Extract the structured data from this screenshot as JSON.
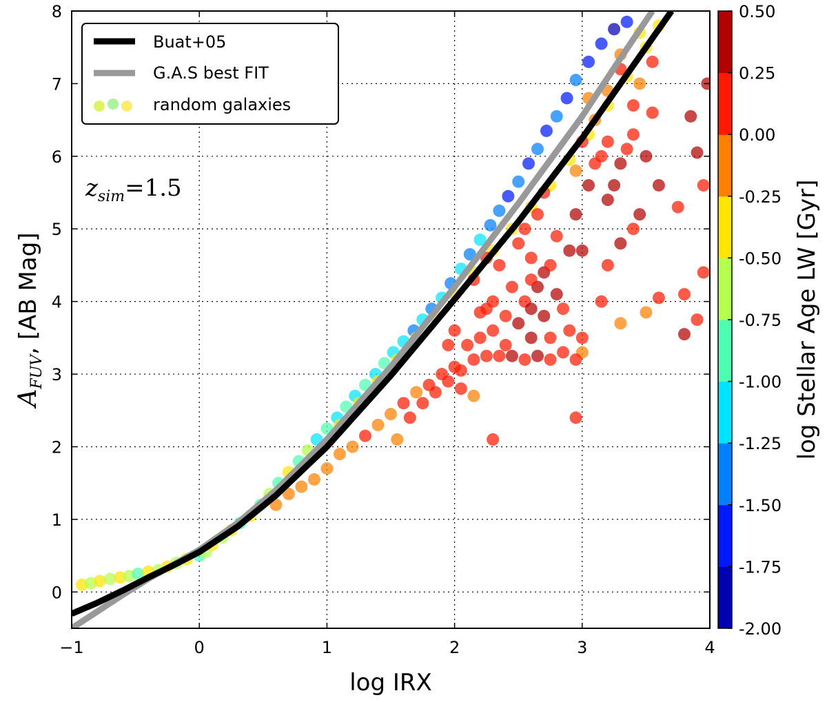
{
  "chart_data": {
    "type": "scatter",
    "title": "",
    "xlabel": "log IRX",
    "ylabel_math": {
      "main": "A",
      "sub": "FUV",
      "rest": ", [AB Mag]"
    },
    "xlim": [
      -1,
      4
    ],
    "ylim": [
      -0.5,
      8
    ],
    "xticks": [
      -1,
      0,
      1,
      2,
      3,
      4
    ],
    "xtick_labels": [
      "−1",
      "0",
      "1",
      "2",
      "3",
      "4"
    ],
    "yticks": [
      0,
      1,
      2,
      3,
      4,
      5,
      6,
      7,
      8
    ],
    "ytick_labels": [
      "0",
      "1",
      "2",
      "3",
      "4",
      "5",
      "6",
      "7",
      "8"
    ],
    "grid": true,
    "annotation": {
      "main": "z",
      "sub": "sim",
      "rest": "=1.5"
    },
    "legend": {
      "placement": "top-left",
      "entries": [
        {
          "label": "Buat+05",
          "kind": "line",
          "color": "#000000"
        },
        {
          "label": "G.A.S best FIT",
          "kind": "line",
          "color": "#999999"
        },
        {
          "label": "random galaxies",
          "kind": "markers",
          "colors": [
            "#d2f02a",
            "#8ef07a",
            "#ffe43a"
          ]
        }
      ]
    },
    "colorbar": {
      "label": "log Stellar Age LW [Gyr]",
      "min": -2.0,
      "max": 0.5,
      "ticks": [
        0.5,
        0.25,
        0.0,
        -0.25,
        -0.5,
        -0.75,
        -1.0,
        -1.25,
        -1.5,
        -1.75,
        -2.0
      ],
      "tick_labels": [
        "0.50",
        "0.25",
        "0.00",
        "-0.25",
        "-0.50",
        "-0.75",
        "-1.00",
        "-1.25",
        "-1.50",
        "-1.75",
        "-2.00"
      ],
      "colormap": "jet",
      "bins": 10
    },
    "series": [
      {
        "name": "Buat+05",
        "kind": "line",
        "color": "#000000",
        "x": [
          -1.0,
          -0.8,
          -0.6,
          -0.4,
          -0.2,
          0.0,
          0.3,
          0.6,
          1.0,
          1.5,
          2.0,
          2.5,
          3.0,
          3.3,
          3.7
        ],
        "y": [
          -0.3,
          -0.15,
          0.02,
          0.2,
          0.37,
          0.55,
          0.9,
          1.33,
          2.0,
          2.98,
          4.03,
          5.1,
          6.25,
          7.0,
          8.0
        ]
      },
      {
        "name": "G.A.S best FIT",
        "kind": "line",
        "color": "#999999",
        "x": [
          -1.0,
          -0.8,
          -0.6,
          -0.4,
          -0.2,
          0.0,
          0.3,
          0.6,
          1.0,
          1.5,
          2.0,
          2.5,
          3.0,
          3.3,
          3.55
        ],
        "y": [
          -0.5,
          -0.27,
          -0.04,
          0.18,
          0.38,
          0.58,
          0.95,
          1.4,
          2.1,
          3.1,
          4.2,
          5.35,
          6.55,
          7.35,
          8.0
        ]
      },
      {
        "name": "galaxies",
        "kind": "scatter",
        "points": [
          [
            -0.92,
            0.1,
            -0.4
          ],
          [
            -0.85,
            0.12,
            -0.6
          ],
          [
            -0.78,
            0.15,
            -0.45
          ],
          [
            -0.7,
            0.18,
            -0.7
          ],
          [
            -0.62,
            0.2,
            -0.35
          ],
          [
            -0.55,
            0.22,
            -0.55
          ],
          [
            -0.48,
            0.25,
            -0.8
          ],
          [
            -0.4,
            0.28,
            -0.4
          ],
          [
            -0.32,
            0.3,
            -0.65
          ],
          [
            -0.25,
            0.35,
            -0.5
          ],
          [
            -0.18,
            0.4,
            -0.75
          ],
          [
            -0.1,
            0.45,
            -0.45
          ],
          [
            0.0,
            0.5,
            -0.9
          ],
          [
            0.05,
            0.55,
            -0.6
          ],
          [
            0.1,
            0.65,
            -0.3
          ],
          [
            0.18,
            0.75,
            -0.7
          ],
          [
            0.25,
            0.85,
            -0.5
          ],
          [
            0.32,
            0.95,
            -0.85
          ],
          [
            0.4,
            1.05,
            -0.4
          ],
          [
            0.48,
            1.2,
            -0.8
          ],
          [
            0.55,
            1.35,
            -0.6
          ],
          [
            0.62,
            1.5,
            -0.9
          ],
          [
            0.7,
            1.65,
            -0.5
          ],
          [
            0.78,
            1.8,
            -0.95
          ],
          [
            0.85,
            1.95,
            -0.7
          ],
          [
            0.92,
            2.1,
            -1.05
          ],
          [
            1.0,
            2.25,
            -0.8
          ],
          [
            1.08,
            2.4,
            -1.1
          ],
          [
            1.15,
            2.55,
            -0.9
          ],
          [
            1.22,
            2.7,
            -1.15
          ],
          [
            1.3,
            2.85,
            -0.95
          ],
          [
            1.38,
            3.0,
            -1.2
          ],
          [
            1.45,
            3.15,
            -1.0
          ],
          [
            1.52,
            3.3,
            -1.25
          ],
          [
            1.6,
            3.45,
            -1.1
          ],
          [
            1.68,
            3.6,
            -1.3
          ],
          [
            1.75,
            3.75,
            -1.05
          ],
          [
            1.82,
            3.9,
            -1.35
          ],
          [
            1.9,
            4.05,
            -1.15
          ],
          [
            1.97,
            4.25,
            -1.4
          ],
          [
            2.05,
            4.45,
            -1.2
          ],
          [
            2.12,
            4.65,
            -1.45
          ],
          [
            2.2,
            4.85,
            -1.25
          ],
          [
            2.28,
            5.05,
            -1.5
          ],
          [
            2.35,
            5.25,
            -1.3
          ],
          [
            2.42,
            5.45,
            -1.55
          ],
          [
            2.5,
            5.65,
            -1.35
          ],
          [
            2.58,
            5.9,
            -1.6
          ],
          [
            2.65,
            6.1,
            -1.4
          ],
          [
            2.72,
            6.35,
            -1.65
          ],
          [
            2.8,
            6.55,
            -1.45
          ],
          [
            2.88,
            6.8,
            -1.7
          ],
          [
            2.95,
            7.05,
            -1.5
          ],
          [
            3.05,
            7.3,
            -1.75
          ],
          [
            3.15,
            7.55,
            -1.55
          ],
          [
            3.25,
            7.75,
            -1.8
          ],
          [
            3.35,
            7.85,
            -1.6
          ],
          [
            1.1,
            2.3,
            -0.35
          ],
          [
            1.25,
            2.6,
            -0.4
          ],
          [
            1.4,
            2.9,
            -0.3
          ],
          [
            1.55,
            3.2,
            -0.45
          ],
          [
            1.7,
            3.5,
            -0.35
          ],
          [
            1.85,
            3.8,
            -0.4
          ],
          [
            2.0,
            4.1,
            -0.3
          ],
          [
            2.15,
            4.4,
            -0.45
          ],
          [
            2.3,
            4.7,
            -0.35
          ],
          [
            2.45,
            5.0,
            -0.4
          ],
          [
            2.6,
            5.3,
            -0.3
          ],
          [
            2.75,
            5.6,
            -0.45
          ],
          [
            2.9,
            5.95,
            -0.35
          ],
          [
            3.05,
            6.3,
            -0.4
          ],
          [
            3.2,
            6.7,
            -0.3
          ],
          [
            3.35,
            7.1,
            -0.45
          ],
          [
            3.5,
            7.5,
            -0.35
          ],
          [
            3.6,
            7.8,
            -0.4
          ],
          [
            3.45,
            7.7,
            -0.3
          ],
          [
            3.3,
            7.4,
            -0.25
          ],
          [
            0.6,
            1.2,
            -0.2
          ],
          [
            0.7,
            1.35,
            -0.15
          ],
          [
            0.8,
            1.45,
            -0.1
          ],
          [
            0.9,
            1.55,
            -0.2
          ],
          [
            1.0,
            1.7,
            -0.05
          ],
          [
            1.1,
            1.9,
            -0.15
          ],
          [
            1.2,
            2.0,
            -0.1
          ],
          [
            1.3,
            2.15,
            0.0
          ],
          [
            1.4,
            2.3,
            -0.1
          ],
          [
            1.5,
            2.45,
            -0.05
          ],
          [
            1.6,
            2.6,
            0.05
          ],
          [
            1.7,
            2.75,
            -0.05
          ],
          [
            1.8,
            2.85,
            0.1
          ],
          [
            1.9,
            3.0,
            0.0
          ],
          [
            2.0,
            3.1,
            0.1
          ],
          [
            1.55,
            2.1,
            -0.05
          ],
          [
            1.65,
            2.4,
            0.05
          ],
          [
            1.75,
            2.6,
            0.1
          ],
          [
            1.85,
            2.75,
            0.15
          ],
          [
            1.95,
            2.9,
            0.05
          ],
          [
            2.05,
            3.05,
            0.15
          ],
          [
            2.15,
            3.2,
            0.1
          ],
          [
            2.25,
            3.25,
            0.2
          ],
          [
            2.35,
            3.25,
            0.15
          ],
          [
            2.45,
            3.25,
            0.25
          ],
          [
            2.55,
            3.2,
            0.2
          ],
          [
            2.65,
            3.25,
            0.3
          ],
          [
            2.75,
            3.2,
            0.15
          ],
          [
            2.85,
            3.3,
            0.2
          ],
          [
            2.3,
            3.6,
            0.15
          ],
          [
            2.4,
            3.8,
            0.2
          ],
          [
            2.5,
            3.7,
            0.25
          ],
          [
            2.55,
            4.0,
            0.15
          ],
          [
            2.6,
            3.9,
            0.3
          ],
          [
            2.65,
            4.2,
            0.25
          ],
          [
            2.7,
            4.4,
            0.35
          ],
          [
            2.75,
            4.5,
            0.2
          ],
          [
            2.8,
            4.1,
            0.3
          ],
          [
            2.3,
            4.0,
            0.1
          ],
          [
            2.2,
            3.85,
            0.05
          ],
          [
            2.15,
            4.3,
            0.0
          ],
          [
            2.25,
            4.6,
            0.05
          ],
          [
            2.35,
            4.5,
            0.1
          ],
          [
            2.45,
            4.2,
            0.15
          ],
          [
            2.5,
            4.8,
            0.05
          ],
          [
            2.55,
            5.0,
            0.0
          ],
          [
            2.6,
            4.6,
            0.1
          ],
          [
            2.65,
            5.2,
            0.05
          ],
          [
            2.7,
            5.5,
            0.0
          ],
          [
            2.8,
            4.9,
            0.2
          ],
          [
            2.9,
            4.7,
            0.3
          ],
          [
            2.95,
            5.2,
            0.25
          ],
          [
            3.0,
            4.7,
            0.35
          ],
          [
            3.05,
            5.6,
            0.3
          ],
          [
            3.1,
            5.9,
            0.2
          ],
          [
            3.15,
            6.0,
            0.15
          ],
          [
            3.2,
            5.4,
            0.3
          ],
          [
            3.25,
            5.6,
            0.35
          ],
          [
            3.3,
            5.9,
            0.25
          ],
          [
            3.35,
            6.1,
            0.2
          ],
          [
            3.4,
            6.3,
            0.15
          ],
          [
            3.45,
            5.2,
            0.3
          ],
          [
            3.5,
            6.0,
            0.35
          ],
          [
            3.55,
            6.6,
            0.2
          ],
          [
            3.6,
            5.6,
            0.3
          ],
          [
            3.4,
            5.0,
            0.2
          ],
          [
            3.3,
            4.8,
            0.25
          ],
          [
            3.2,
            4.5,
            0.1
          ],
          [
            3.15,
            4.0,
            0.05
          ],
          [
            3.0,
            3.5,
            0.1
          ],
          [
            2.9,
            3.6,
            0.0
          ],
          [
            3.0,
            3.3,
            -0.05
          ],
          [
            3.3,
            3.7,
            -0.1
          ],
          [
            3.5,
            3.85,
            -0.05
          ],
          [
            3.6,
            4.05,
            0.0
          ],
          [
            3.75,
            5.3,
            0.05
          ],
          [
            3.8,
            4.1,
            0.1
          ],
          [
            3.85,
            6.55,
            0.3
          ],
          [
            3.9,
            6.05,
            0.35
          ],
          [
            3.9,
            3.75,
            0.2
          ],
          [
            3.95,
            4.4,
            0.15
          ],
          [
            3.95,
            5.6,
            0.2
          ],
          [
            3.98,
            7.0,
            0.35
          ],
          [
            3.8,
            3.55,
            0.3
          ],
          [
            2.95,
            3.2,
            0.1
          ],
          [
            2.3,
            2.1,
            0.1
          ],
          [
            2.15,
            2.7,
            -0.05
          ],
          [
            2.95,
            2.4,
            0.15
          ],
          [
            2.05,
            2.8,
            0.05
          ],
          [
            1.95,
            3.4,
            0.1
          ],
          [
            2.0,
            3.6,
            0.05
          ],
          [
            2.1,
            3.4,
            0.15
          ],
          [
            2.2,
            3.5,
            0.1
          ],
          [
            2.25,
            3.9,
            0.0
          ],
          [
            2.4,
            3.4,
            0.2
          ],
          [
            2.6,
            3.5,
            0.25
          ],
          [
            2.7,
            3.8,
            0.3
          ],
          [
            2.75,
            3.5,
            0.2
          ],
          [
            2.85,
            3.9,
            0.15
          ],
          [
            2.6,
            4.3,
            0.1
          ],
          [
            3.1,
            6.5,
            -0.1
          ],
          [
            3.2,
            6.9,
            -0.05
          ],
          [
            3.3,
            7.2,
            0.0
          ],
          [
            3.45,
            7.0,
            -0.05
          ],
          [
            3.55,
            7.3,
            0.0
          ],
          [
            3.2,
            6.2,
            0.05
          ],
          [
            3.0,
            6.2,
            0.0
          ],
          [
            2.95,
            5.8,
            -0.05
          ],
          [
            3.05,
            6.8,
            -0.1
          ],
          [
            3.4,
            6.7,
            0.05
          ]
        ]
      }
    ]
  }
}
